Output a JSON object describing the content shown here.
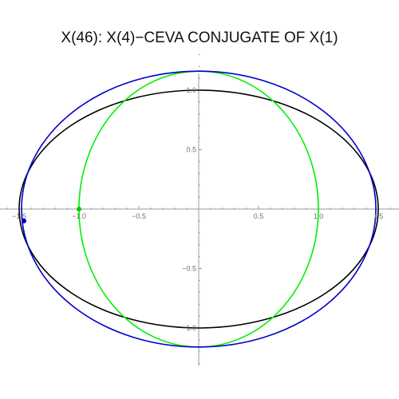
{
  "chart_data": {
    "type": "line",
    "title": "X(46): X(4)−CEVA CONJUGATE OF X(1)",
    "xlabel": "",
    "ylabel": "",
    "xlim": [
      -1.5,
      1.5
    ],
    "ylim": [
      -1.2,
      1.2
    ],
    "x_ticks": [
      -1.5,
      -1.0,
      -0.5,
      0.5,
      1.0,
      1.5
    ],
    "x_tick_labels": [
      "−1.5",
      "−1.0",
      "−0.5",
      "0.5",
      "1.0",
      "1.5"
    ],
    "y_ticks": [
      -1.0,
      -0.5,
      0.5,
      1.0
    ],
    "y_tick_labels": [
      "−1.0",
      "−0.5",
      "0.5",
      "1.0"
    ],
    "grid": false,
    "series": [
      {
        "kind": "ellipse",
        "center": [
          0,
          0
        ],
        "rx": 1.5,
        "ry": 1.0,
        "color": "#000000"
      },
      {
        "kind": "ellipse",
        "center": [
          0,
          0
        ],
        "rx": 1.0,
        "ry": 1.16,
        "color": "#00ee00"
      },
      {
        "kind": "ellipse",
        "center": [
          0,
          0
        ],
        "rx": 1.48,
        "ry": 1.16,
        "color": "#0000cc"
      }
    ],
    "points": [
      {
        "x": -1.0,
        "y": 0.0,
        "color": "#00cc00"
      },
      {
        "x": -1.46,
        "y": -0.1,
        "color": "#0000cc"
      }
    ]
  }
}
